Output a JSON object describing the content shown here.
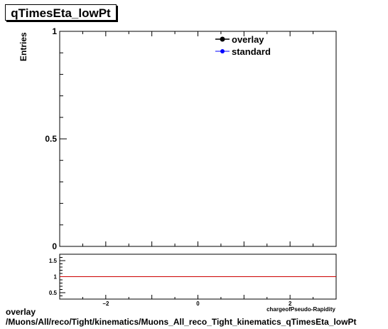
{
  "title": "qTimesEta_lowPt",
  "caption": {
    "line1": "overlay",
    "line2": "/Muons/All/reco/Tight/kinematics/Muons_All_reco_Tight_kinematics_qTimesEta_lowPt"
  },
  "chart_data": [
    {
      "type": "line",
      "ylabel": "Entries",
      "xlim": [
        -3,
        3
      ],
      "ylim": [
        0,
        1
      ],
      "y_ticks": [
        {
          "value": 0,
          "label": "0"
        },
        {
          "value": 0.5,
          "label": "0.5"
        },
        {
          "value": 1,
          "label": "1"
        }
      ],
      "legend_position": "top-right",
      "series": [
        {
          "name": "overlay",
          "color": "#000000",
          "marker": "circle",
          "values": []
        },
        {
          "name": "standard",
          "color": "#0000ff",
          "marker": "circle",
          "values": []
        }
      ]
    },
    {
      "type": "line",
      "xlabel": "chargeofPseudo-Rapidity",
      "xlim": [
        -3,
        3
      ],
      "ylim": [
        0.3,
        1.7
      ],
      "x_ticks": [
        {
          "value": -2,
          "label": "−2"
        },
        {
          "value": 0,
          "label": "0"
        },
        {
          "value": 2,
          "label": "2"
        }
      ],
      "y_ticks": [
        {
          "value": 0.5,
          "label": "0.5"
        },
        {
          "value": 1,
          "label": "1"
        },
        {
          "value": 1.5,
          "label": "1.5"
        }
      ],
      "reference_line": {
        "y": 1,
        "color": "#cc0000"
      }
    }
  ]
}
